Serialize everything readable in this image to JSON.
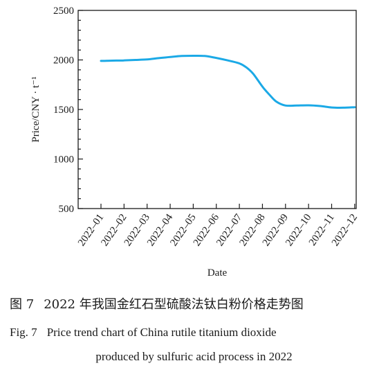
{
  "chart_data": {
    "type": "line",
    "title": "",
    "xlabel": "Date",
    "ylabel": "Price/CNY · t⁻¹",
    "ylim": [
      500,
      2500
    ],
    "yticks": [
      500,
      1000,
      1500,
      2000,
      2500
    ],
    "grid": false,
    "legend": "none",
    "line_color": "#1ba9e6",
    "categories": [
      "2022–01",
      "2022–02",
      "2022–03",
      "2022–04",
      "2022–05",
      "2022–06",
      "2022–07",
      "2022–08",
      "2022–09",
      "2022–10",
      "2022–11",
      "2022–12"
    ],
    "series": [
      {
        "x": [
          1,
          1.5,
          2,
          2.5,
          3,
          3.5,
          4,
          4.5,
          5,
          5.5,
          6,
          6.5,
          7,
          7.3,
          7.6,
          8,
          8.3,
          8.6,
          9,
          9.5,
          10,
          10.5,
          11,
          11.5,
          12
        ],
        "values": [
          1990,
          1993,
          1995,
          2000,
          2005,
          2018,
          2030,
          2040,
          2042,
          2040,
          2020,
          1995,
          1965,
          1925,
          1860,
          1730,
          1650,
          1580,
          1540,
          1540,
          1542,
          1535,
          1520,
          1518,
          1523
        ]
      }
    ]
  },
  "caption": {
    "cn_label": "图 7",
    "cn_text": "2022 年我国金红石型硫酸法钛白粉价格走势图",
    "en_label": "Fig. 7",
    "en_line1": "Price trend chart of China rutile titanium dioxide",
    "en_line2": "produced by sulfuric acid process in 2022"
  }
}
